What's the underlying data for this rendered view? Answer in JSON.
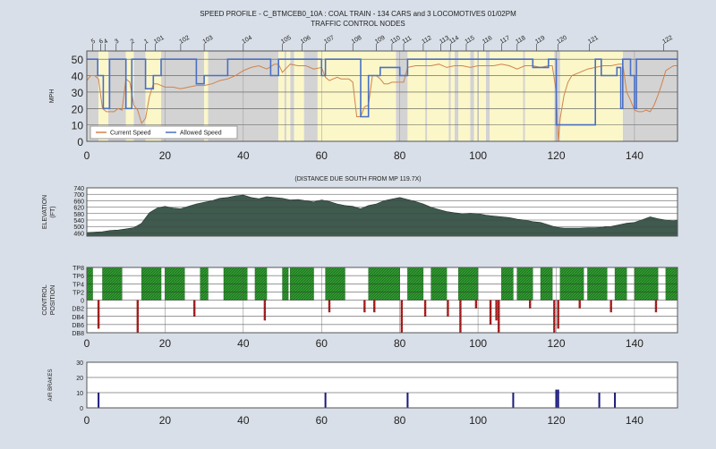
{
  "title": "SPEED PROFILE - C_BTMCEB0_10A : COAL TRAIN - 134 CARS and 3 LOCOMOTIVES 01/02PM",
  "subtitle": "TRAFFIC CONTROL NODES",
  "elevation_caption": "(DISTANCE DUE SOUTH FROM MP 119.7X)",
  "colors": {
    "background": "#d8dfe8",
    "plot_bg": "#ffffff",
    "gray_zone": "#d3d3d3",
    "yellow_zone": "#fbf7c8",
    "current": "#d2824a",
    "allowed": "#4a6fc4",
    "terrain": "#3f5a4e",
    "power": "#2e9a2e",
    "brake": "#c02020",
    "airbrake": "#1a1a7a"
  },
  "chart_data": [
    {
      "type": "line",
      "name": "speed-profile",
      "ylabel": "MPH",
      "xlim": [
        0,
        151
      ],
      "ylim": [
        0,
        55
      ],
      "xticks": [
        0,
        20,
        40,
        60,
        80,
        100,
        120,
        140
      ],
      "yticks": [
        0,
        10,
        20,
        30,
        40,
        50
      ],
      "legend": {
        "position": "bottom-left",
        "entries": [
          "Current Speed",
          "Allowed Speed"
        ]
      },
      "node_labels": [
        {
          "x": 1.5,
          "label": "5"
        },
        {
          "x": 3.5,
          "label": "6"
        },
        {
          "x": 4.7,
          "label": "4"
        },
        {
          "x": 7.5,
          "label": "3"
        },
        {
          "x": 11.5,
          "label": "2"
        },
        {
          "x": 15,
          "label": "1"
        },
        {
          "x": 17.5,
          "label": "101"
        },
        {
          "x": 24,
          "label": "102"
        },
        {
          "x": 30,
          "label": "103"
        },
        {
          "x": 40,
          "label": "104"
        },
        {
          "x": 50,
          "label": "105"
        },
        {
          "x": 55,
          "label": "106"
        },
        {
          "x": 61,
          "label": "107"
        },
        {
          "x": 68,
          "label": "108"
        },
        {
          "x": 74,
          "label": "109"
        },
        {
          "x": 78,
          "label": "110"
        },
        {
          "x": 81,
          "label": "111"
        },
        {
          "x": 86,
          "label": "112"
        },
        {
          "x": 90.5,
          "label": "113"
        },
        {
          "x": 93,
          "label": "114"
        },
        {
          "x": 97,
          "label": "115"
        },
        {
          "x": 101.5,
          "label": "116"
        },
        {
          "x": 106,
          "label": "117"
        },
        {
          "x": 110,
          "label": "118"
        },
        {
          "x": 115,
          "label": "119"
        },
        {
          "x": 120.5,
          "label": "120"
        },
        {
          "x": 128.5,
          "label": "121"
        },
        {
          "x": 147.5,
          "label": "122"
        }
      ],
      "gray_zones": [
        [
          0,
          3
        ],
        [
          5.5,
          10
        ],
        [
          12,
          15
        ],
        [
          19,
          30
        ],
        [
          31,
          49
        ],
        [
          50.5,
          51
        ],
        [
          52,
          53
        ],
        [
          55.5,
          59
        ],
        [
          79,
          82
        ],
        [
          86.5,
          87
        ],
        [
          92.5,
          93
        ],
        [
          94,
          95
        ],
        [
          98,
          99
        ],
        [
          99.8,
          100.2
        ],
        [
          102,
          103
        ],
        [
          111.5,
          112
        ],
        [
          119.5,
          121
        ],
        [
          137,
          151
        ]
      ],
      "yellow_zones": [
        [
          3,
          5.5
        ],
        [
          10,
          12
        ],
        [
          15,
          19
        ],
        [
          30,
          31
        ],
        [
          49,
          50.5
        ],
        [
          51,
          52
        ],
        [
          53,
          55.5
        ],
        [
          59,
          79
        ],
        [
          82,
          86.5
        ],
        [
          87,
          92.5
        ],
        [
          93,
          94
        ],
        [
          95,
          98
        ],
        [
          99,
          99.8
        ],
        [
          100.2,
          102
        ],
        [
          103,
          111.5
        ],
        [
          112,
          119.5
        ],
        [
          121,
          137
        ]
      ],
      "series": [
        {
          "name": "Current Speed",
          "x": [
            0,
            1,
            2,
            3,
            4,
            5,
            6,
            7,
            8,
            9,
            10,
            11,
            12,
            13,
            14,
            15,
            16,
            17,
            18,
            19,
            20,
            22,
            24,
            26,
            28,
            30,
            32,
            34,
            36,
            38,
            40,
            42,
            44,
            46,
            48,
            49,
            50,
            52,
            54,
            56,
            58,
            60,
            61,
            62,
            63,
            64,
            65,
            66,
            67,
            68,
            69,
            70,
            71,
            72,
            73,
            74,
            75,
            76,
            77,
            78,
            79,
            80,
            81,
            82,
            84,
            86,
            88,
            90,
            92,
            94,
            96,
            98,
            100,
            102,
            104,
            106,
            108,
            110,
            112,
            114,
            116,
            118,
            119,
            120,
            120.5,
            121,
            122,
            123,
            124,
            126,
            128,
            130,
            132,
            134,
            136,
            137,
            138,
            139,
            140,
            141,
            142,
            143,
            144,
            145,
            146,
            147,
            148,
            150,
            151
          ],
          "y": [
            37,
            40,
            40,
            38,
            20,
            18,
            18,
            18,
            20,
            19,
            38,
            36,
            22,
            19,
            11,
            14,
            27,
            35,
            35,
            34,
            33,
            33,
            32,
            33,
            34,
            34,
            35,
            37,
            38,
            40,
            43,
            45,
            46,
            44,
            47,
            47,
            42,
            47,
            46,
            46,
            44,
            45,
            39,
            37,
            38,
            39,
            38,
            38,
            38,
            36,
            15,
            15,
            21,
            22,
            40,
            40,
            38,
            35,
            35,
            36,
            36,
            36,
            36,
            45,
            46,
            46,
            46,
            47,
            45,
            46,
            46,
            45,
            46,
            46,
            46,
            47,
            46,
            44,
            46,
            46,
            45,
            46,
            46,
            30,
            0,
            14,
            28,
            36,
            40,
            42,
            44,
            45,
            46,
            46,
            47,
            47,
            30,
            25,
            19,
            18,
            18,
            19,
            18,
            22,
            28,
            35,
            43,
            46,
            46
          ]
        },
        {
          "name": "Allowed Speed",
          "x": [
            0,
            2.8,
            2.8,
            4.2,
            4.2,
            5.8,
            5.8,
            10,
            10,
            11.5,
            11.5,
            15,
            15,
            17,
            17,
            19,
            19,
            28,
            28,
            30,
            30,
            36,
            36,
            47,
            47,
            49,
            49,
            60,
            60,
            61,
            61,
            70,
            70,
            72,
            72,
            75,
            75,
            80,
            80,
            82,
            82,
            114,
            114,
            118,
            118,
            120,
            120,
            130,
            130,
            131.5,
            131.5,
            135.5,
            135.5,
            136.5,
            136.5,
            137,
            137,
            139,
            139,
            140,
            140,
            140.5,
            140.5,
            151
          ],
          "y": [
            50,
            50,
            40,
            40,
            20,
            20,
            50,
            50,
            20,
            20,
            50,
            50,
            32,
            32,
            40,
            40,
            50,
            50,
            35,
            35,
            40,
            40,
            50,
            50,
            40,
            40,
            50,
            50,
            40,
            40,
            50,
            50,
            15,
            15,
            40,
            40,
            45,
            45,
            40,
            40,
            50,
            50,
            45,
            45,
            50,
            50,
            10,
            10,
            50,
            50,
            40,
            40,
            45,
            45,
            20,
            20,
            50,
            50,
            40,
            40,
            20,
            20,
            50,
            50
          ]
        }
      ]
    },
    {
      "type": "area",
      "name": "elevation",
      "title": "(DISTANCE DUE SOUTH FROM MP 119.7X)",
      "ylabel": "ELEVATION (FT)",
      "xlim": [
        0,
        151
      ],
      "ylim": [
        440,
        740
      ],
      "yticks": [
        460,
        500,
        540,
        580,
        620,
        660,
        700,
        740
      ],
      "series": [
        {
          "name": "Elevation",
          "x": [
            0,
            2,
            4,
            6,
            8,
            10,
            12,
            14,
            16,
            18,
            20,
            22,
            24,
            26,
            28,
            30,
            32,
            34,
            36,
            38,
            40,
            42,
            44,
            46,
            48,
            50,
            52,
            54,
            56,
            58,
            60,
            62,
            64,
            66,
            68,
            70,
            72,
            74,
            76,
            78,
            80,
            82,
            84,
            86,
            88,
            90,
            92,
            94,
            96,
            98,
            100,
            102,
            104,
            106,
            108,
            110,
            112,
            114,
            116,
            118,
            120,
            122,
            124,
            126,
            128,
            130,
            132,
            134,
            136,
            138,
            140,
            142,
            144,
            146,
            148,
            150,
            151
          ],
          "y": [
            462,
            465,
            468,
            475,
            478,
            485,
            492,
            520,
            585,
            615,
            625,
            615,
            610,
            625,
            640,
            650,
            660,
            675,
            680,
            690,
            695,
            680,
            672,
            685,
            680,
            675,
            665,
            668,
            660,
            652,
            665,
            655,
            640,
            630,
            625,
            610,
            630,
            640,
            660,
            670,
            680,
            668,
            655,
            640,
            620,
            605,
            592,
            585,
            580,
            582,
            580,
            570,
            565,
            560,
            555,
            545,
            540,
            530,
            525,
            510,
            495,
            490,
            490,
            490,
            492,
            493,
            495,
            500,
            510,
            520,
            525,
            542,
            560,
            548,
            540,
            535,
            540
          ]
        }
      ]
    },
    {
      "type": "bar",
      "name": "control-position",
      "ylabel": "CONTROL POSITION",
      "xlim": [
        0,
        151
      ],
      "ylim": [
        -8,
        8
      ],
      "ytick_labels": [
        "TP8",
        "TP6",
        "TP4",
        "TP2",
        "0",
        "DB2",
        "DB4",
        "DB6",
        "DB8"
      ],
      "power_x": [
        [
          0,
          1.5
        ],
        [
          4,
          9
        ],
        [
          14,
          19
        ],
        [
          20,
          25
        ],
        [
          29,
          31
        ],
        [
          35,
          41
        ],
        [
          43,
          46
        ],
        [
          50,
          51.5
        ],
        [
          52,
          58
        ],
        [
          61,
          66
        ],
        [
          72,
          80
        ],
        [
          82,
          86
        ],
        [
          88,
          92
        ],
        [
          95,
          100
        ],
        [
          106,
          109
        ],
        [
          110,
          114
        ],
        [
          116,
          119
        ],
        [
          121,
          127
        ],
        [
          128,
          133
        ],
        [
          135,
          138
        ],
        [
          140,
          146
        ],
        [
          148,
          151
        ]
      ],
      "power_level": 8,
      "brakes": [
        [
          3,
          -7
        ],
        [
          13,
          -8
        ],
        [
          27.5,
          -4
        ],
        [
          45.5,
          -5
        ],
        [
          62,
          -3
        ],
        [
          71,
          -3
        ],
        [
          73.5,
          -3
        ],
        [
          80.5,
          -8
        ],
        [
          86.5,
          -4
        ],
        [
          92.3,
          -4
        ],
        [
          95.5,
          -8
        ],
        [
          99.5,
          -2
        ],
        [
          103.2,
          -6
        ],
        [
          104.7,
          -5
        ],
        [
          105.3,
          -8
        ],
        [
          113.3,
          -2
        ],
        [
          119.5,
          -8
        ],
        [
          120.5,
          -7
        ],
        [
          126,
          -2
        ],
        [
          134,
          -3
        ],
        [
          145.5,
          -3
        ]
      ]
    },
    {
      "type": "bar",
      "name": "air-brakes",
      "ylabel": "AIR BRAKES",
      "xlim": [
        0,
        151
      ],
      "ylim": [
        0,
        30
      ],
      "yticks": [
        0,
        10,
        20,
        30
      ],
      "applications": [
        [
          3,
          10
        ],
        [
          61,
          10
        ],
        [
          82,
          10
        ],
        [
          109,
          10
        ],
        [
          120,
          12
        ],
        [
          120.5,
          12
        ],
        [
          131,
          10
        ],
        [
          135,
          10
        ]
      ]
    }
  ]
}
